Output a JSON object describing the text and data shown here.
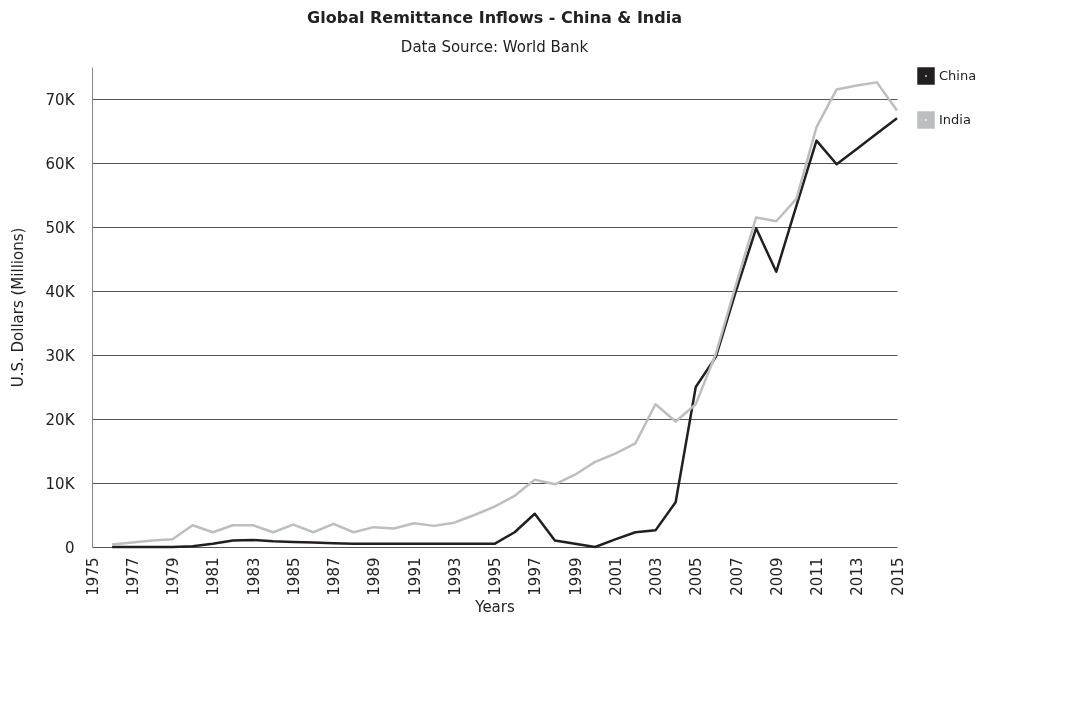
{
  "chart_data": {
    "type": "line",
    "title": "Global Remittance Inflows - China & India",
    "subtitle": "Data Source: World Bank",
    "xlabel": "Years",
    "ylabel": "U.S. Dollars (Millions)",
    "x": [
      1976,
      1977,
      1978,
      1979,
      1980,
      1981,
      1982,
      1983,
      1984,
      1985,
      1986,
      1987,
      1988,
      1989,
      1990,
      1991,
      1992,
      1993,
      1994,
      1995,
      1996,
      1997,
      1998,
      1999,
      2000,
      2001,
      2002,
      2003,
      2004,
      2005,
      2006,
      2007,
      2008,
      2009,
      2010,
      2011,
      2012,
      2013,
      2014,
      2015
    ],
    "series": [
      {
        "name": "China",
        "color": "#231f20",
        "values": [
          0,
          0,
          0,
          0,
          100,
          500,
          1000,
          1100,
          900,
          800,
          700,
          600,
          500,
          500,
          500,
          500,
          500,
          500,
          500,
          500,
          2300,
          5200,
          1000,
          500,
          0,
          1200,
          2300,
          2600,
          7000,
          25000,
          29700,
          40000,
          49800,
          43000,
          53300,
          63500,
          59800,
          62200,
          64600,
          67000
        ]
      },
      {
        "name": "India",
        "color": "#bcbec0",
        "values": [
          400,
          700,
          1000,
          1200,
          3400,
          2300,
          3400,
          3400,
          2300,
          3500,
          2300,
          3600,
          2300,
          3100,
          2900,
          3700,
          3300,
          3800,
          5000,
          6300,
          8000,
          10500,
          9800,
          11300,
          13300,
          14600,
          16200,
          22300,
          19600,
          22300,
          30200,
          41000,
          51500,
          50900,
          54400,
          65600,
          71500,
          72100,
          72600,
          68200
        ]
      }
    ],
    "xlim": [
      1975,
      2015
    ],
    "xticks": [
      1975,
      1977,
      1979,
      1981,
      1983,
      1985,
      1987,
      1989,
      1991,
      1993,
      1995,
      1997,
      1999,
      2001,
      2003,
      2005,
      2007,
      2009,
      2011,
      2013,
      2015
    ],
    "ylim": [
      0,
      75000
    ],
    "yticks": [
      0,
      {
        "value": 10000,
        "label": "10K"
      },
      {
        "value": 20000,
        "label": "20K"
      },
      {
        "value": 30000,
        "label": "30K"
      },
      {
        "value": 40000,
        "label": "40K"
      },
      {
        "value": 50000,
        "label": "50K"
      },
      {
        "value": 60000,
        "label": "60K"
      },
      {
        "value": 70000,
        "label": "70K"
      }
    ],
    "grid": "y",
    "legend": "right",
    "line_style": "solid",
    "marker": "none"
  }
}
